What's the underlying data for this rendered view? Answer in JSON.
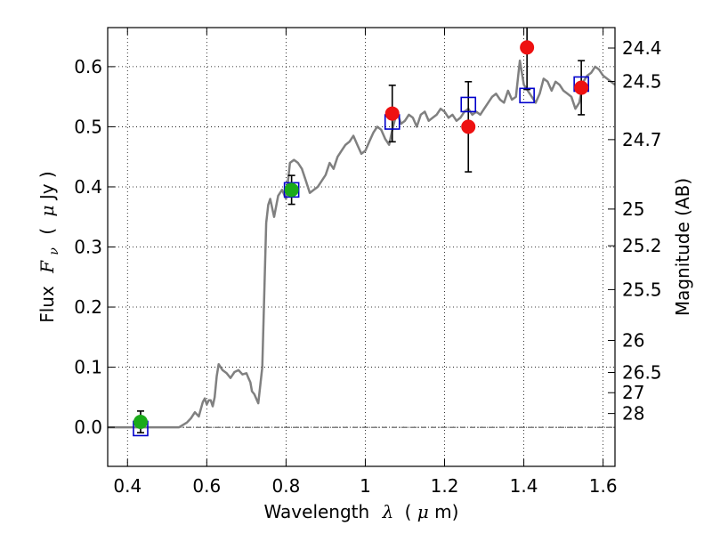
{
  "chart_data": {
    "type": "scatter",
    "title": "",
    "xlabel": "Wavelength",
    "xlabel_symbol": "λ",
    "xlabel_unit_open": "(",
    "xlabel_unit_mu": "μ",
    "xlabel_unit_tail": "m)",
    "ylabel_prefix": "Flux",
    "ylabel_symbol": "F",
    "ylabel_sub": "ν",
    "ylabel_unit_open": "(",
    "ylabel_unit_mu": "μ",
    "ylabel_unit_tail": "Jy )",
    "y2label": "Magnitude (AB)",
    "xlim": [
      0.35,
      1.63
    ],
    "ylim": [
      -0.065,
      0.665
    ],
    "grid": true,
    "x_ticks": [
      0.4,
      0.6,
      0.8,
      1.0,
      1.2,
      1.4,
      1.6
    ],
    "x_tick_labels": [
      "0.4",
      "0.6",
      "0.8",
      "1",
      "1.2",
      "1.4",
      "1.6"
    ],
    "y_ticks": [
      0.0,
      0.1,
      0.2,
      0.3,
      0.4,
      0.5,
      0.6
    ],
    "y_tick_labels": [
      "0.0",
      "0.1",
      "0.2",
      "0.3",
      "0.4",
      "0.5",
      "0.6"
    ],
    "magnitude_ticks": [
      "24.4",
      "24.5",
      "24.7",
      "25",
      "25.2",
      "25.5",
      "26",
      "26.5",
      "27",
      "28"
    ],
    "magnitude_zero_point_ujy": 23.9,
    "zero_line": true,
    "colors": {
      "model": "#808080",
      "model_points": "#0000cc",
      "green_points": "#1aaa1a",
      "red_points": "#ee1111",
      "errorbars": "#000000",
      "zero_line": "#000000"
    },
    "series": [
      {
        "kind": "model_spectrum_line",
        "x": [
          0.35,
          0.53,
          0.54,
          0.55,
          0.56,
          0.57,
          0.58,
          0.585,
          0.59,
          0.595,
          0.6,
          0.605,
          0.61,
          0.615,
          0.62,
          0.625,
          0.63,
          0.64,
          0.65,
          0.66,
          0.67,
          0.68,
          0.69,
          0.7,
          0.705,
          0.71,
          0.714,
          0.72,
          0.73,
          0.74,
          0.75,
          0.755,
          0.76,
          0.77,
          0.78,
          0.79,
          0.8,
          0.81,
          0.82,
          0.83,
          0.84,
          0.85,
          0.86,
          0.87,
          0.88,
          0.89,
          0.9,
          0.91,
          0.92,
          0.93,
          0.94,
          0.95,
          0.96,
          0.97,
          0.98,
          0.99,
          1.0,
          1.01,
          1.02,
          1.03,
          1.04,
          1.05,
          1.06,
          1.07,
          1.08,
          1.09,
          1.1,
          1.11,
          1.12,
          1.13,
          1.14,
          1.15,
          1.16,
          1.17,
          1.18,
          1.19,
          1.2,
          1.21,
          1.22,
          1.23,
          1.24,
          1.25,
          1.26,
          1.27,
          1.28,
          1.29,
          1.3,
          1.31,
          1.32,
          1.33,
          1.34,
          1.35,
          1.36,
          1.37,
          1.38,
          1.385,
          1.39,
          1.4,
          1.41,
          1.42,
          1.43,
          1.44,
          1.45,
          1.46,
          1.47,
          1.48,
          1.49,
          1.5,
          1.51,
          1.52,
          1.53,
          1.54,
          1.55,
          1.56,
          1.57,
          1.58,
          1.59,
          1.6,
          1.61,
          1.62,
          1.63
        ],
        "y": [
          0.0,
          0.0,
          0.004,
          0.008,
          0.015,
          0.025,
          0.018,
          0.03,
          0.042,
          0.048,
          0.038,
          0.045,
          0.045,
          0.035,
          0.05,
          0.085,
          0.105,
          0.095,
          0.09,
          0.082,
          0.092,
          0.095,
          0.088,
          0.09,
          0.082,
          0.075,
          0.06,
          0.055,
          0.04,
          0.1,
          0.34,
          0.37,
          0.38,
          0.35,
          0.385,
          0.395,
          0.38,
          0.44,
          0.445,
          0.44,
          0.43,
          0.41,
          0.39,
          0.395,
          0.4,
          0.41,
          0.42,
          0.44,
          0.43,
          0.45,
          0.46,
          0.47,
          0.475,
          0.485,
          0.47,
          0.455,
          0.46,
          0.475,
          0.49,
          0.5,
          0.495,
          0.48,
          0.47,
          0.5,
          0.525,
          0.505,
          0.51,
          0.52,
          0.515,
          0.5,
          0.52,
          0.525,
          0.51,
          0.515,
          0.52,
          0.53,
          0.525,
          0.515,
          0.52,
          0.51,
          0.515,
          0.525,
          0.53,
          0.52,
          0.525,
          0.52,
          0.53,
          0.54,
          0.55,
          0.555,
          0.545,
          0.54,
          0.56,
          0.545,
          0.55,
          0.58,
          0.61,
          0.57,
          0.56,
          0.55,
          0.54,
          0.555,
          0.58,
          0.575,
          0.56,
          0.575,
          0.57,
          0.56,
          0.555,
          0.55,
          0.53,
          0.54,
          0.575,
          0.585,
          0.59,
          0.6,
          0.595,
          0.585,
          0.58,
          0.575,
          0.57
        ]
      },
      {
        "kind": "model_photometry_open_squares",
        "x": [
          0.433,
          0.814,
          1.068,
          1.26,
          1.408,
          1.545
        ],
        "y": [
          -0.002,
          0.395,
          0.508,
          0.537,
          0.552,
          0.571
        ]
      },
      {
        "kind": "observed_green_with_errorbars",
        "x": [
          0.433,
          0.814
        ],
        "y": [
          0.009,
          0.395
        ],
        "yerr": [
          0.018,
          0.024
        ]
      },
      {
        "kind": "observed_red_with_errorbars",
        "x": [
          1.068,
          1.26,
          1.408,
          1.545
        ],
        "y": [
          0.522,
          0.5,
          0.632,
          0.565
        ],
        "yerr": [
          0.047,
          0.075,
          0.07,
          0.045
        ]
      }
    ]
  }
}
